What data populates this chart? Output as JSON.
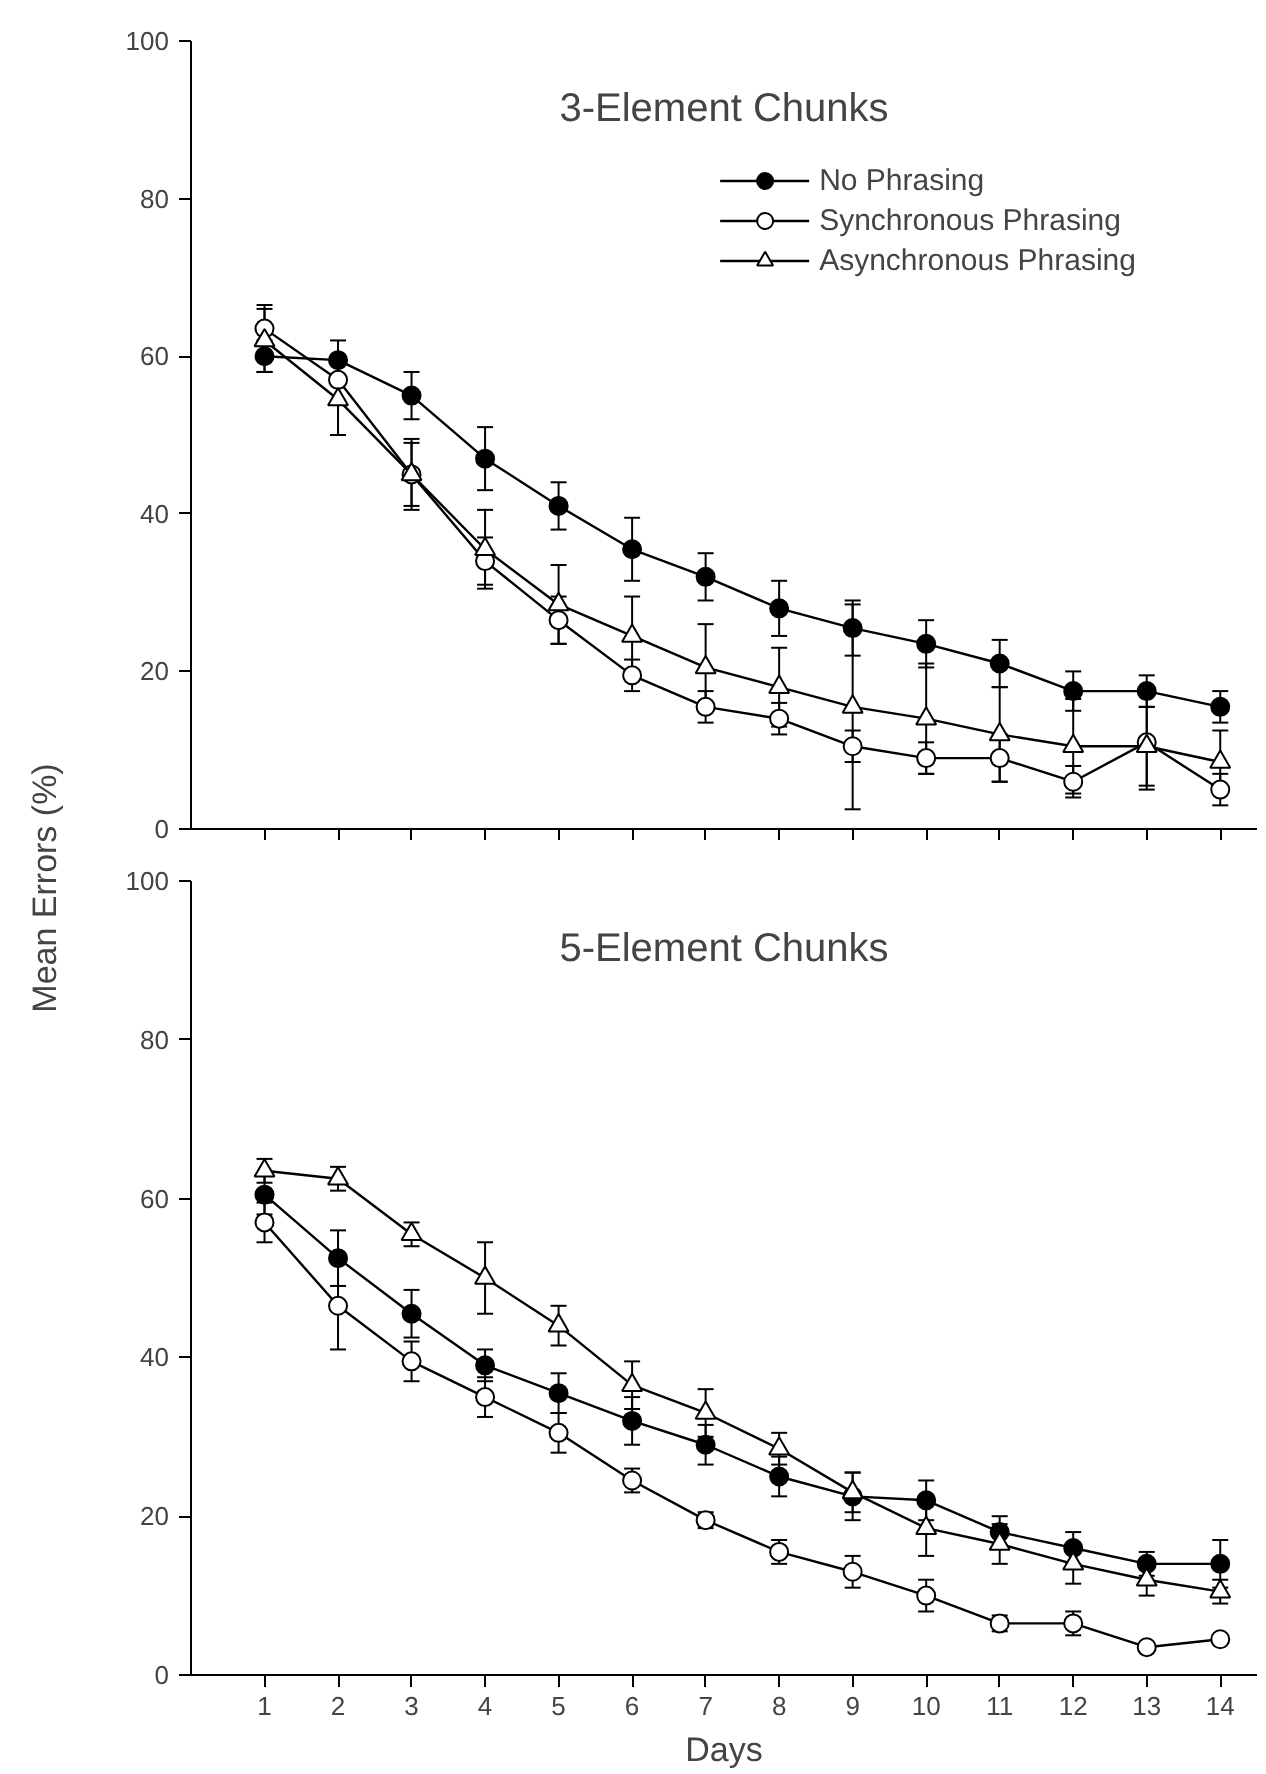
{
  "chart_data": [
    {
      "type": "line",
      "title": "3-Element Chunks",
      "ylabel": "Mean Errors (%)",
      "x": [
        1,
        2,
        3,
        4,
        5,
        6,
        7,
        8,
        9,
        10,
        11,
        12,
        13,
        14
      ],
      "xlim": [
        0,
        14.5
      ],
      "xticks": [
        1,
        2,
        3,
        4,
        5,
        6,
        7,
        8,
        9,
        10,
        11,
        12,
        13,
        14
      ],
      "ylim": [
        0,
        100
      ],
      "yticks": [
        0,
        20,
        40,
        60,
        80,
        100
      ],
      "tick_labels": "y",
      "legend": "top right",
      "grid": false,
      "series": [
        {
          "name": "No Phrasing",
          "color": "#000000",
          "marker": "circle",
          "values": [
            60,
            59.5,
            55,
            47,
            41,
            35.5,
            32,
            28,
            25.5,
            23.5,
            21,
            17.5,
            17.5,
            15.5
          ],
          "errors": [
            2,
            2.5,
            3,
            4,
            3,
            4,
            3,
            3.5,
            3.5,
            3,
            3,
            2.5,
            2,
            2
          ]
        },
        {
          "name": "Synchronous Phrasing",
          "color": "#ffffff",
          "marker": "circle",
          "values": [
            63.5,
            57,
            45,
            34,
            26.5,
            19.5,
            15.5,
            14,
            10.5,
            9,
            9,
            6,
            11,
            5
          ],
          "errors": [
            3,
            3,
            4,
            3,
            3,
            2,
            2,
            2,
            2,
            2,
            3,
            2,
            6,
            2
          ]
        },
        {
          "name": "Asynchronous Phrasing",
          "color": "#ffffff",
          "marker": "triangle",
          "values": [
            62,
            54.5,
            45,
            35.5,
            28.5,
            24.5,
            20.5,
            18,
            15.5,
            14,
            12,
            10.5,
            10.5,
            8.5
          ],
          "errors": [
            4,
            4.5,
            4.5,
            5,
            5,
            5,
            5.5,
            5,
            13,
            7,
            6,
            6,
            5,
            4
          ]
        }
      ]
    },
    {
      "type": "line",
      "title": "5-Element Chunks",
      "xlabel": "Days",
      "x": [
        1,
        2,
        3,
        4,
        5,
        6,
        7,
        8,
        9,
        10,
        11,
        12,
        13,
        14
      ],
      "xlim": [
        0,
        14.5
      ],
      "xticks": [
        1,
        2,
        3,
        4,
        5,
        6,
        7,
        8,
        9,
        10,
        11,
        12,
        13,
        14
      ],
      "ylim": [
        0,
        100
      ],
      "yticks": [
        0,
        20,
        40,
        60,
        80,
        100
      ],
      "legend": false,
      "grid": false,
      "series": [
        {
          "color": "#000000",
          "marker": "circle",
          "values": [
            60.5,
            52.5,
            45.5,
            39,
            35.5,
            32,
            29,
            25,
            22.5,
            22,
            18,
            16,
            14,
            14
          ],
          "errors": [
            2.5,
            3.5,
            3,
            2,
            2.5,
            3,
            2.5,
            2.5,
            3,
            2.5,
            2,
            2,
            1.5,
            3
          ]
        },
        {
          "color": "#ffffff",
          "marker": "circle",
          "values": [
            57,
            46.5,
            39.5,
            35,
            30.5,
            24.5,
            19.5,
            15.5,
            13,
            10,
            6.5,
            6.5,
            3.5,
            4.5
          ],
          "errors": [
            2.5,
            5.5,
            2.5,
            2.5,
            2.5,
            1.5,
            1,
            1.5,
            2,
            2,
            1,
            1.5,
            0.5,
            0.5
          ]
        },
        {
          "color": "#ffffff",
          "marker": "triangle",
          "values": [
            63.5,
            62.5,
            55.5,
            50,
            44,
            36.5,
            33,
            28.5,
            23,
            18.5,
            16.5,
            14,
            12,
            10.5
          ],
          "errors": [
            1.5,
            1.5,
            1.5,
            4.5,
            2.5,
            3,
            3,
            2,
            2.5,
            3.5,
            2.5,
            2.5,
            2,
            1.5
          ]
        }
      ]
    }
  ]
}
